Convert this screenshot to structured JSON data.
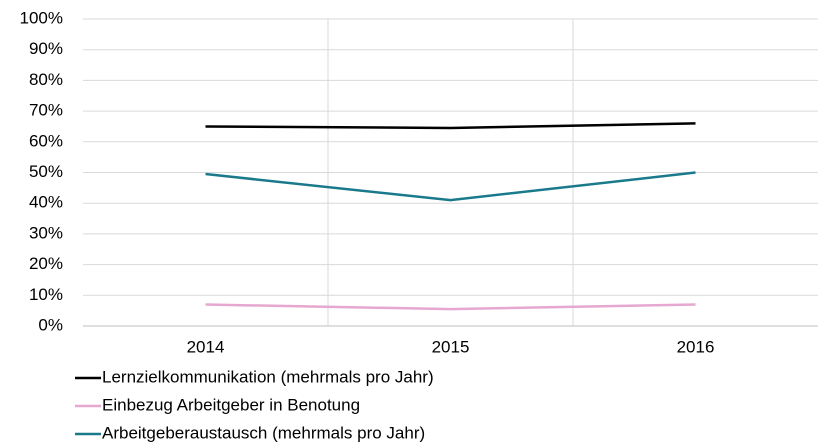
{
  "chart_data": {
    "type": "line",
    "categories": [
      "2014",
      "2015",
      "2016"
    ],
    "series": [
      {
        "name": "Lernzielkommunikation (mehrmals pro Jahr)",
        "color": "#000000",
        "values": [
          65,
          64.5,
          66
        ]
      },
      {
        "name": "Einbezug Arbeitgeber in Benotung",
        "color": "#e6a8d0",
        "values": [
          7,
          5.5,
          7
        ]
      },
      {
        "name": "Arbeitgeberaustausch (mehrmals pro Jahr)",
        "color": "#1a7a8c",
        "values": [
          49.5,
          41,
          50
        ]
      }
    ],
    "ylim": [
      0,
      100
    ],
    "yticks": [
      {
        "value": 0,
        "label": "0%"
      },
      {
        "value": 10,
        "label": "10%"
      },
      {
        "value": 20,
        "label": "20%"
      },
      {
        "value": 30,
        "label": "30%"
      },
      {
        "value": 40,
        "label": "40%"
      },
      {
        "value": 50,
        "label": "50%"
      },
      {
        "value": 60,
        "label": "60%"
      },
      {
        "value": 70,
        "label": "70%"
      },
      {
        "value": 80,
        "label": "80%"
      },
      {
        "value": 90,
        "label": "90%"
      },
      {
        "value": 100,
        "label": "100%"
      }
    ],
    "grid": true,
    "legend": "bottom"
  }
}
